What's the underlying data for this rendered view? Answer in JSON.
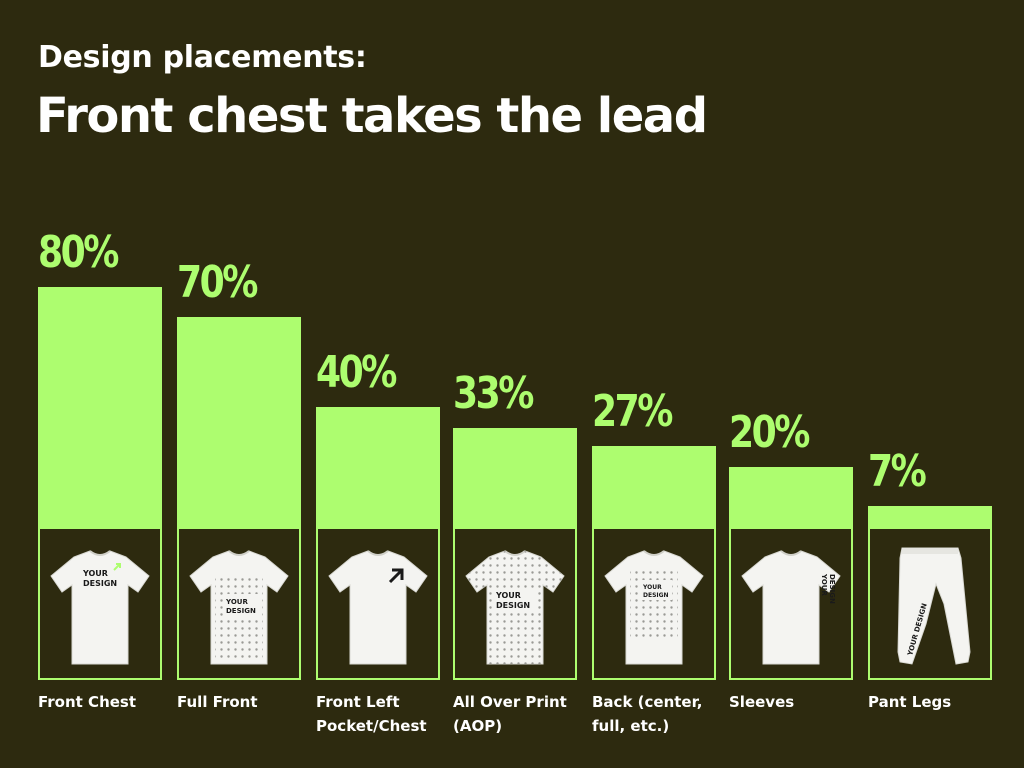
{
  "header": {
    "subtitle": "Design placements:",
    "title": "Front chest takes the lead"
  },
  "colors": {
    "background": "#2d2a0f",
    "accent": "#adfd6f",
    "text": "#ffffff",
    "garment": "#f4f4f1"
  },
  "chart_data": {
    "type": "bar",
    "categories": [
      "Front Chest",
      "Full Front",
      "Front Left Pocket/Chest",
      "All Over Print (AOP)",
      "Back (center, full, etc.)",
      "Sleeves",
      "Pant Legs"
    ],
    "category_lines": [
      [
        "Front Chest"
      ],
      [
        "Full Front"
      ],
      [
        "Front Left",
        "Pocket/Chest"
      ],
      [
        "All Over Print",
        "(AOP)"
      ],
      [
        "Back (center,",
        "full, etc.)"
      ],
      [
        "Sleeves"
      ],
      [
        "Pant Legs"
      ]
    ],
    "values": [
      80,
      70,
      40,
      33,
      27,
      20,
      7
    ],
    "value_labels": [
      "80%",
      "70%",
      "40%",
      "33%",
      "27%",
      "20%",
      "7%"
    ],
    "ylim": [
      0,
      100
    ],
    "grid": false,
    "legend": "none"
  },
  "products": [
    {
      "garment": "t-shirt",
      "placement": "front-chest",
      "print_text": "YOUR DESIGN"
    },
    {
      "garment": "t-shirt",
      "placement": "full-front",
      "print_text": "YOUR DESIGN"
    },
    {
      "garment": "t-shirt",
      "placement": "front-left-pocket",
      "print_text": ""
    },
    {
      "garment": "t-shirt",
      "placement": "all-over-print",
      "print_text": "YOUR DESIGN"
    },
    {
      "garment": "t-shirt",
      "placement": "back",
      "print_text": "YOUR DESIGN"
    },
    {
      "garment": "t-shirt",
      "placement": "sleeve",
      "print_text": "YOUR DESIGN"
    },
    {
      "garment": "pants",
      "placement": "pant-leg",
      "print_text": "YOUR DESIGN"
    }
  ]
}
